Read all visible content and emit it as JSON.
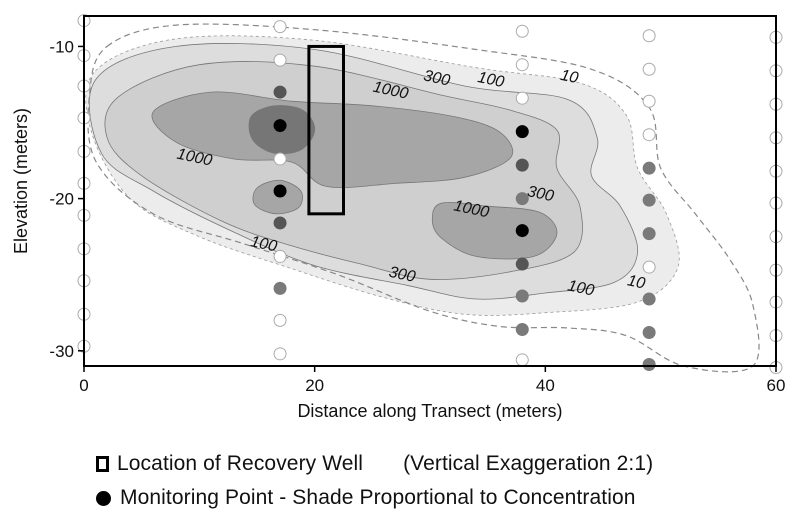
{
  "chart_data": {
    "type": "contour",
    "title": "",
    "xlabel": "Distance along Transect (meters)",
    "ylabel": "Elevation (meters)",
    "xlim": [
      0,
      60
    ],
    "ylim": [
      -31,
      -8
    ],
    "x_ticks": [
      0,
      20,
      40,
      60
    ],
    "y_ticks": [
      -10,
      -20,
      -30
    ],
    "contour_levels": [
      10,
      100,
      300,
      1000
    ],
    "contour_labels": [
      {
        "text": "1000",
        "x": 26.5,
        "y": -13.2
      },
      {
        "text": "1000",
        "x": 9.5,
        "y": -17.6
      },
      {
        "text": "1000",
        "x": 33.5,
        "y": -21.0
      },
      {
        "text": "300",
        "x": 30.5,
        "y": -12.4
      },
      {
        "text": "300",
        "x": 39.5,
        "y": -20.0
      },
      {
        "text": "300",
        "x": 27.5,
        "y": -25.3
      },
      {
        "text": "100",
        "x": 35.2,
        "y": -12.5
      },
      {
        "text": "100",
        "x": 15.5,
        "y": -23.3
      },
      {
        "text": "100",
        "x": 43.0,
        "y": -26.2
      },
      {
        "text": "10",
        "x": 42.0,
        "y": -12.3
      },
      {
        "text": "10",
        "x": 47.8,
        "y": -25.8
      }
    ],
    "recovery_well": {
      "x_min": 19.5,
      "x_max": 22.5,
      "y_top": -10,
      "y_bottom": -21
    },
    "monitoring_points": [
      {
        "x": 0,
        "y": -8.3,
        "shade": 0
      },
      {
        "x": 0,
        "y": -10.6,
        "shade": 0
      },
      {
        "x": 0,
        "y": -12.6,
        "shade": 0
      },
      {
        "x": 0,
        "y": -14.7,
        "shade": 0
      },
      {
        "x": 0,
        "y": -16.9,
        "shade": 0
      },
      {
        "x": 0,
        "y": -19.0,
        "shade": 0
      },
      {
        "x": 0,
        "y": -21.1,
        "shade": 0
      },
      {
        "x": 0,
        "y": -23.3,
        "shade": 0
      },
      {
        "x": 0,
        "y": -25.4,
        "shade": 0
      },
      {
        "x": 0,
        "y": -27.6,
        "shade": 0
      },
      {
        "x": 0,
        "y": -29.7,
        "shade": 0
      },
      {
        "x": 17,
        "y": -8.7,
        "shade": 0
      },
      {
        "x": 17,
        "y": -10.9,
        "shade": 0
      },
      {
        "x": 17,
        "y": -13.0,
        "shade": 2
      },
      {
        "x": 17,
        "y": -15.2,
        "shade": 3
      },
      {
        "x": 17,
        "y": -17.4,
        "shade": 0
      },
      {
        "x": 17,
        "y": -19.5,
        "shade": 3
      },
      {
        "x": 17,
        "y": -21.6,
        "shade": 2
      },
      {
        "x": 17,
        "y": -23.8,
        "shade": 0
      },
      {
        "x": 17,
        "y": -25.9,
        "shade": 1
      },
      {
        "x": 17,
        "y": -28.0,
        "shade": 0
      },
      {
        "x": 17,
        "y": -30.2,
        "shade": 0
      },
      {
        "x": 38,
        "y": -9.0,
        "shade": 0
      },
      {
        "x": 38,
        "y": -11.2,
        "shade": 0
      },
      {
        "x": 38,
        "y": -13.4,
        "shade": 0
      },
      {
        "x": 38,
        "y": -15.6,
        "shade": 3
      },
      {
        "x": 38,
        "y": -17.8,
        "shade": 2
      },
      {
        "x": 38,
        "y": -20.0,
        "shade": 1
      },
      {
        "x": 38,
        "y": -22.1,
        "shade": 3
      },
      {
        "x": 38,
        "y": -24.3,
        "shade": 2
      },
      {
        "x": 38,
        "y": -26.4,
        "shade": 1
      },
      {
        "x": 38,
        "y": -28.6,
        "shade": 1
      },
      {
        "x": 38,
        "y": -30.6,
        "shade": 0
      },
      {
        "x": 49,
        "y": -9.3,
        "shade": 0
      },
      {
        "x": 49,
        "y": -11.5,
        "shade": 0
      },
      {
        "x": 49,
        "y": -13.6,
        "shade": 0
      },
      {
        "x": 49,
        "y": -15.8,
        "shade": 0
      },
      {
        "x": 49,
        "y": -18.0,
        "shade": 1
      },
      {
        "x": 49,
        "y": -20.1,
        "shade": 1
      },
      {
        "x": 49,
        "y": -22.3,
        "shade": 1
      },
      {
        "x": 49,
        "y": -24.5,
        "shade": 0
      },
      {
        "x": 49,
        "y": -26.6,
        "shade": 1
      },
      {
        "x": 49,
        "y": -28.8,
        "shade": 1
      },
      {
        "x": 49,
        "y": -30.9,
        "shade": 1
      },
      {
        "x": 60,
        "y": -9.4,
        "shade": 0
      },
      {
        "x": 60,
        "y": -11.6,
        "shade": 0
      },
      {
        "x": 60,
        "y": -13.8,
        "shade": 0
      },
      {
        "x": 60,
        "y": -16.0,
        "shade": 0
      },
      {
        "x": 60,
        "y": -18.2,
        "shade": 0
      },
      {
        "x": 60,
        "y": -20.3,
        "shade": 0
      },
      {
        "x": 60,
        "y": -22.5,
        "shade": 0
      },
      {
        "x": 60,
        "y": -24.7,
        "shade": 0
      },
      {
        "x": 60,
        "y": -26.8,
        "shade": 0
      },
      {
        "x": 60,
        "y": -29.0,
        "shade": 0
      },
      {
        "x": 60,
        "y": -31.1,
        "shade": 0
      }
    ],
    "shade_colors": [
      "#ffffff",
      "#7a7a7a",
      "#555555",
      "#000000"
    ],
    "fill_colors": {
      "300": "#ececec",
      "100": "#dddddd",
      "300inner": "#cfcfcf",
      "1000": "#a6a6a6",
      "core": "#767676"
    }
  },
  "legend": {
    "well_label": "Location of Recovery Well",
    "exaggeration": "(Vertical Exaggeration 2:1)",
    "monitoring_label": "Monitoring Point - Shade Proportional to Concentration"
  }
}
